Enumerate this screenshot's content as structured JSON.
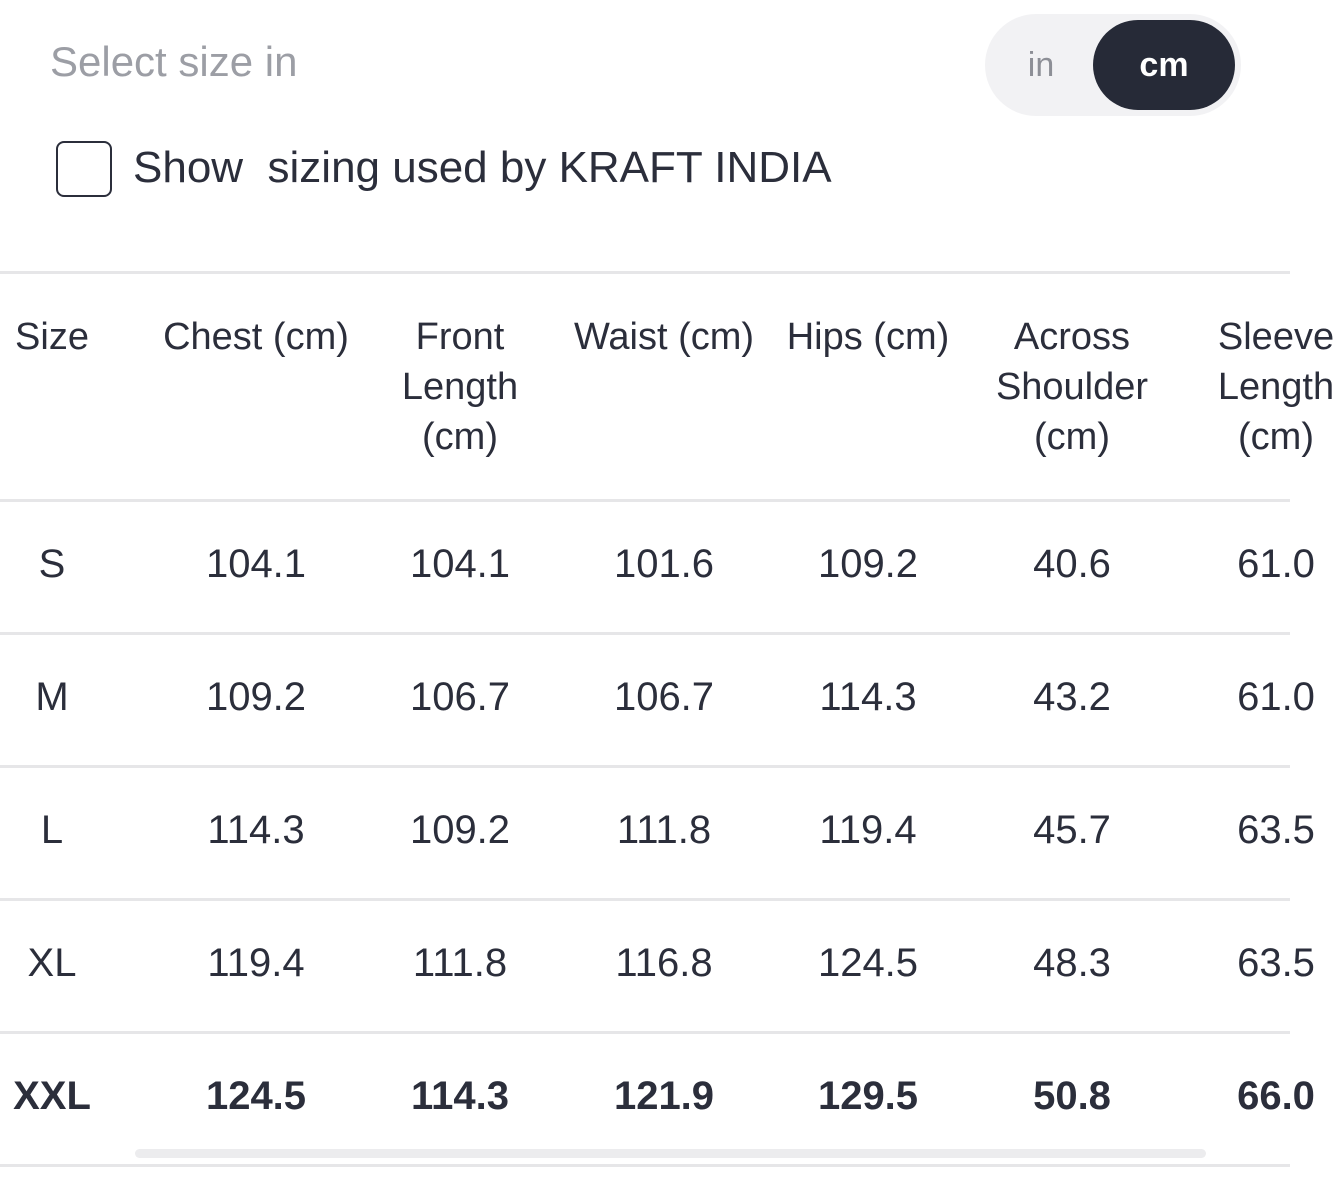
{
  "header": {
    "label": "Select size in",
    "units": [
      "in",
      "cm"
    ],
    "selected_unit": 1
  },
  "checkbox": {
    "label": "Show  sizing used by KRAFT INDIA",
    "checked": false
  },
  "table": {
    "columns": [
      "Size",
      "Chest (cm)",
      "Front Length (cm)",
      "Waist (cm)",
      "Hips (cm)",
      "Across Shoulder (cm)",
      "Sleeve Length (cm)"
    ],
    "rows": [
      [
        "S",
        "104.1",
        "104.1",
        "101.6",
        "109.2",
        "40.6",
        "61.0"
      ],
      [
        "M",
        "109.2",
        "106.7",
        "106.7",
        "114.3",
        "43.2",
        "61.0"
      ],
      [
        "L",
        "114.3",
        "109.2",
        "111.8",
        "119.4",
        "45.7",
        "63.5"
      ],
      [
        "XL",
        "119.4",
        "111.8",
        "116.8",
        "124.5",
        "48.3",
        "63.5"
      ],
      [
        "XXL",
        "124.5",
        "114.3",
        "121.9",
        "129.5",
        "50.8",
        "66.0"
      ]
    ],
    "bold_row": 4
  }
}
